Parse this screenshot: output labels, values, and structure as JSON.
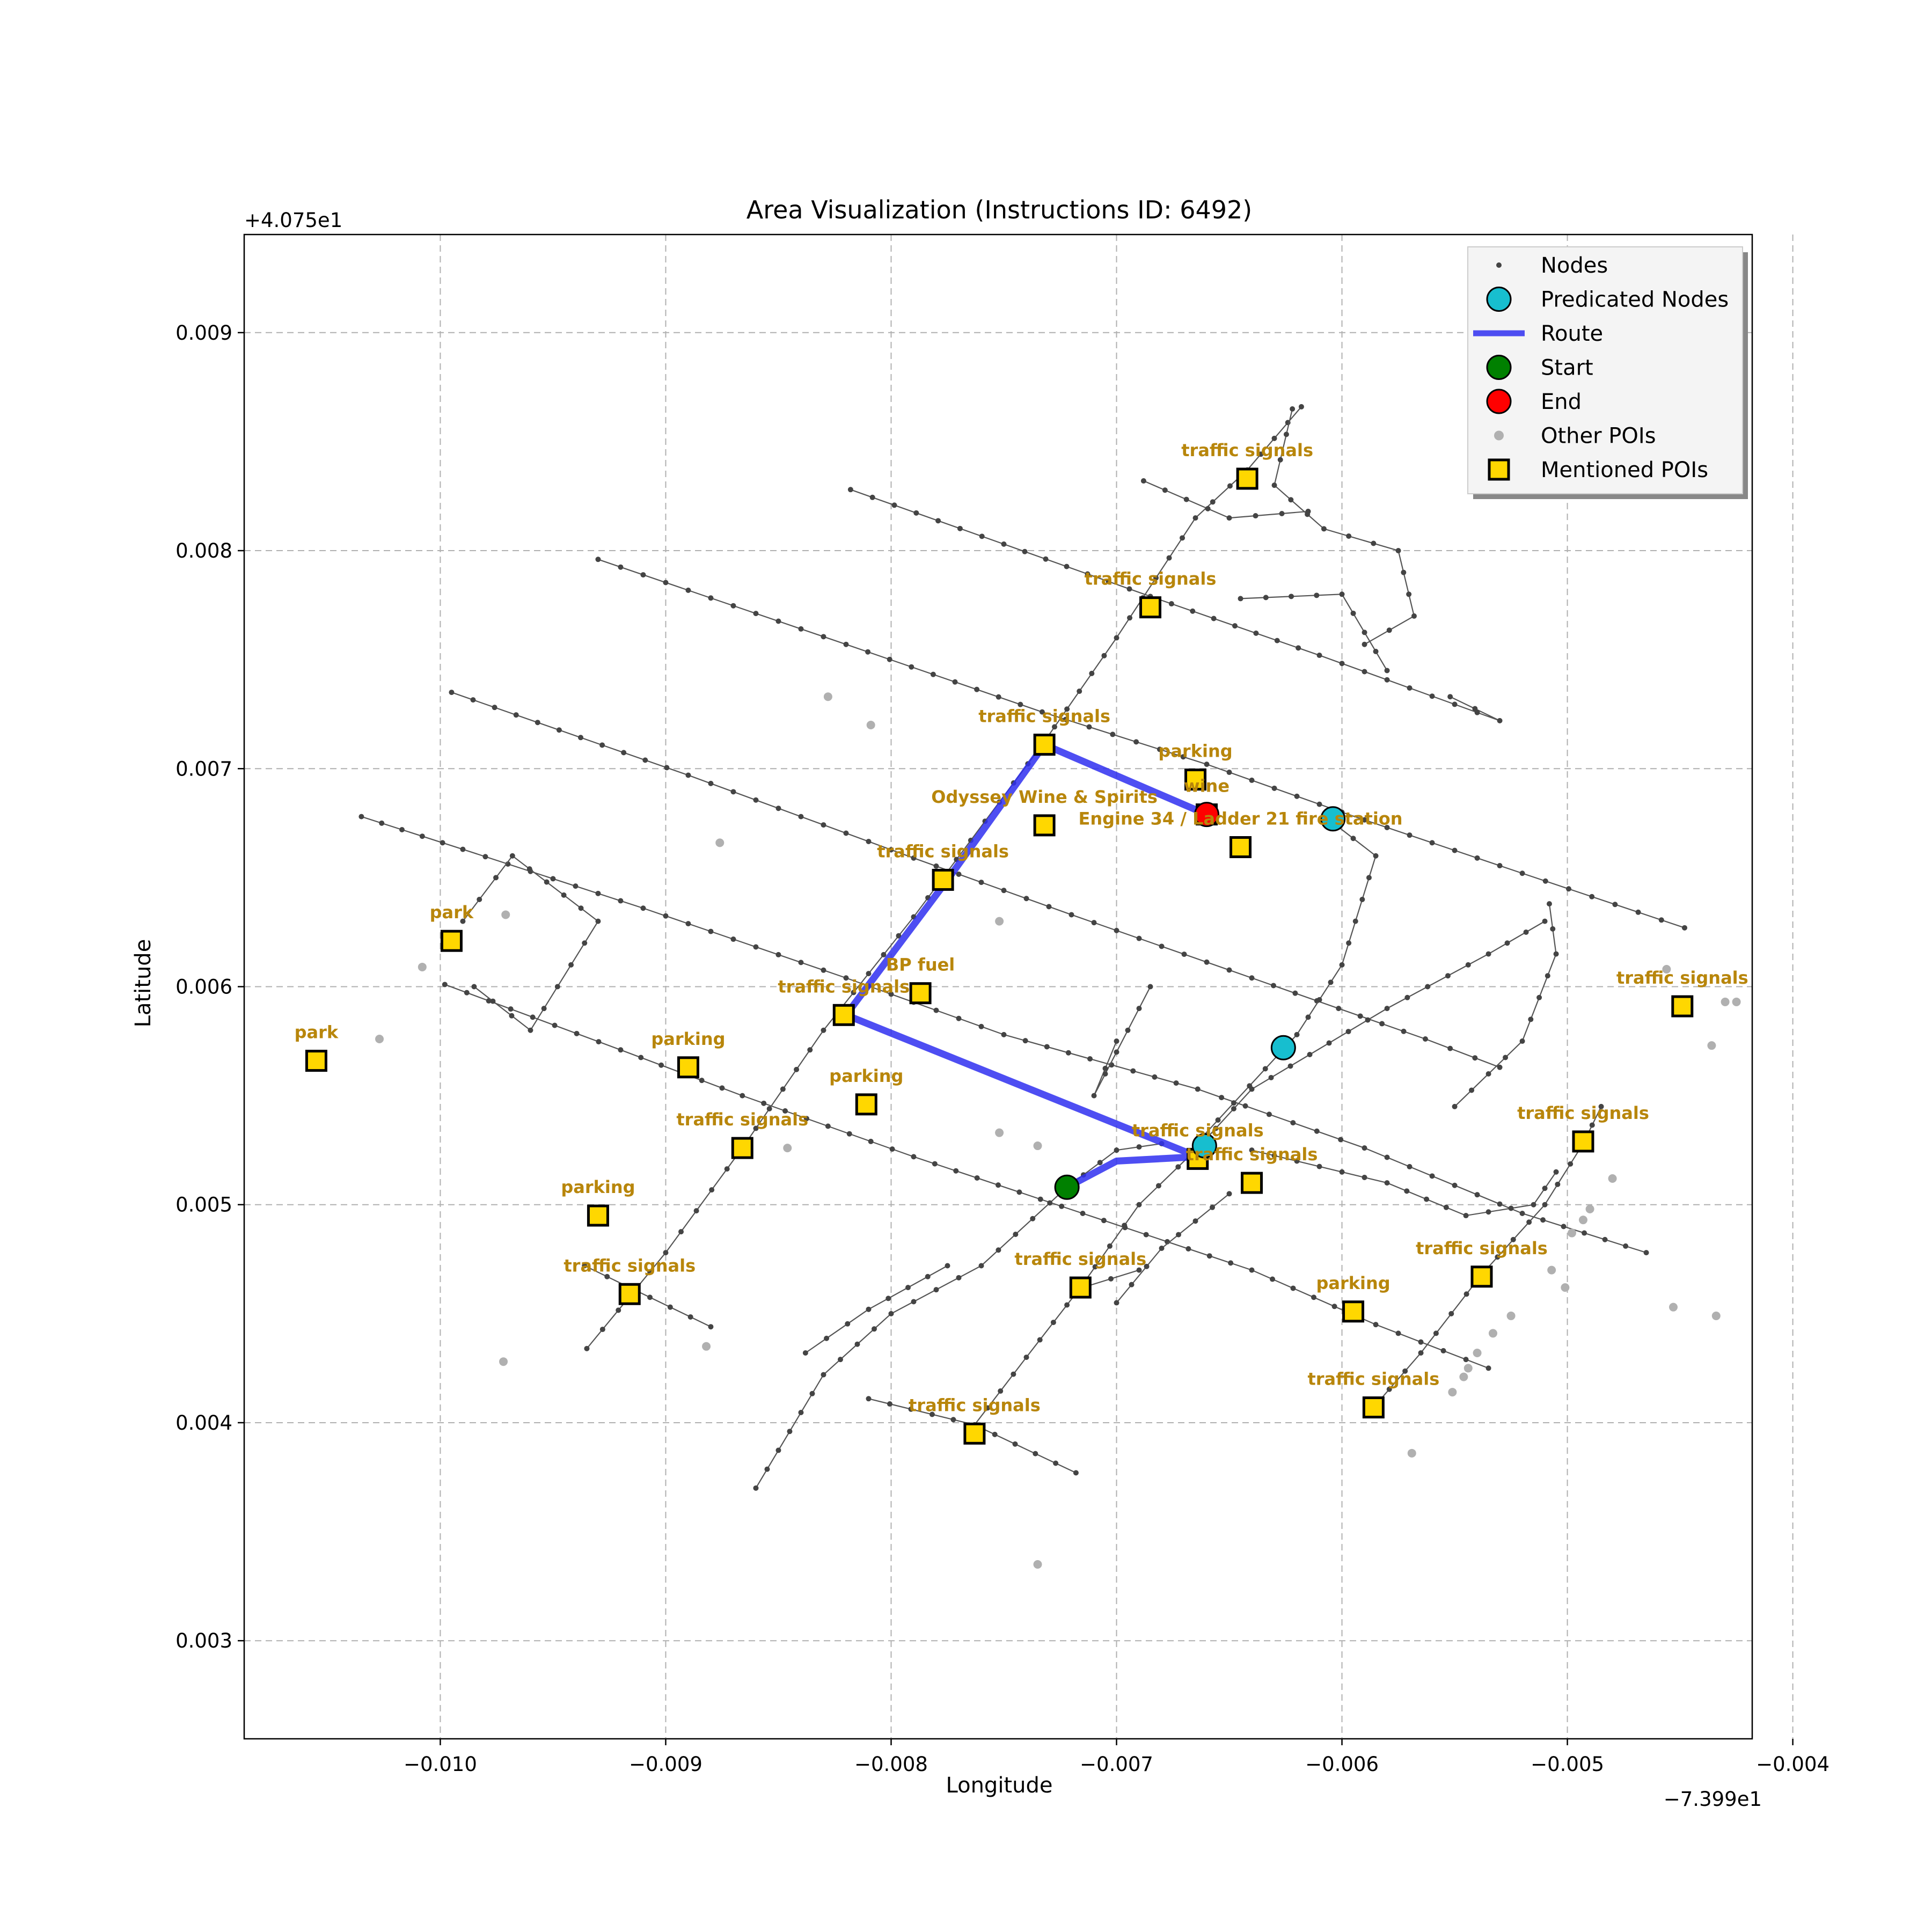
{
  "chart_data": {
    "type": "map",
    "title": "Area Visualization (Instructions ID: 6492)",
    "xlabel": "Longitude",
    "ylabel": "Latitude",
    "x_offset_label": "−7.399e1",
    "y_offset_label": "+4.075e1",
    "xlim": [
      -0.01087,
      -0.00418
    ],
    "ylim": [
      0.00255,
      0.00945
    ],
    "x_ticks": [
      {
        "value": -0.01,
        "label": "−0.010"
      },
      {
        "value": -0.009,
        "label": "−0.009"
      },
      {
        "value": -0.008,
        "label": "−0.008"
      },
      {
        "value": -0.007,
        "label": "−0.007"
      },
      {
        "value": -0.006,
        "label": "−0.006"
      },
      {
        "value": -0.005,
        "label": "−0.005"
      },
      {
        "value": -0.004,
        "label": "−0.004"
      }
    ],
    "y_ticks": [
      {
        "value": 0.003,
        "label": "0.003"
      },
      {
        "value": 0.004,
        "label": "0.004"
      },
      {
        "value": 0.005,
        "label": "0.005"
      },
      {
        "value": 0.006,
        "label": "0.006"
      },
      {
        "value": 0.007,
        "label": "0.007"
      },
      {
        "value": 0.008,
        "label": "0.008"
      },
      {
        "value": 0.009,
        "label": "0.009"
      }
    ],
    "grid": true,
    "legend": {
      "location": "upper right",
      "entries": [
        {
          "key": "nodes",
          "label": "Nodes"
        },
        {
          "key": "predicated",
          "label": "Predicated Nodes"
        },
        {
          "key": "route",
          "label": "Route"
        },
        {
          "key": "start",
          "label": "Start"
        },
        {
          "key": "end",
          "label": "End"
        },
        {
          "key": "other",
          "label": "Other POIs"
        },
        {
          "key": "mentioned",
          "label": "Mentioned POIs"
        }
      ]
    },
    "colors": {
      "nodes": "#444444",
      "predicated": "#17becf",
      "route": "#2f2ff0",
      "start": "#008000",
      "end": "#ff0000",
      "other": "#b0b0b0",
      "mentioned": "#ffd700",
      "poi_label": "#b8860b"
    },
    "roads": [
      [
        [
          -0.00995,
          0.00735
        ],
        [
          -0.0089,
          0.00697
        ],
        [
          -0.0079,
          0.00659
        ],
        [
          -0.0072,
          0.00633
        ],
        [
          -0.0064,
          0.00604
        ],
        [
          -0.00563,
          0.00576
        ],
        [
          -0.0053,
          0.00563
        ]
      ],
      [
        [
          -0.01035,
          0.00678
        ],
        [
          -0.0099,
          0.00663
        ],
        [
          -0.0091,
          0.00636
        ],
        [
          -0.0082,
          0.00604
        ],
        [
          -0.0075,
          0.00578
        ],
        [
          -0.00664,
          0.00553
        ],
        [
          -0.0059,
          0.00526
        ],
        [
          -0.0052,
          0.00496
        ],
        [
          -0.00465,
          0.00478
        ]
      ],
      [
        [
          -0.0093,
          0.00796
        ],
        [
          -0.0082,
          0.00757
        ],
        [
          -0.00733,
          0.00726
        ],
        [
          -0.0066,
          0.00702
        ],
        [
          -0.006,
          0.0068
        ],
        [
          -0.0052,
          0.00652
        ],
        [
          -0.00448,
          0.00627
        ]
      ],
      [
        [
          -0.00818,
          0.00828
        ],
        [
          -0.0075,
          0.00803
        ],
        [
          -0.00685,
          0.00779
        ],
        [
          -0.0061,
          0.00752
        ],
        [
          -0.0053,
          0.00722
        ],
        [
          -0.00552,
          0.00733
        ]
      ],
      [
        [
          -0.00998,
          0.00601
        ],
        [
          -0.0092,
          0.00571
        ],
        [
          -0.00866,
          0.0055
        ],
        [
          -0.0079,
          0.00522
        ],
        [
          -0.00715,
          0.00496
        ],
        [
          -0.0064,
          0.0047
        ],
        [
          -0.00585,
          0.00445
        ],
        [
          -0.00535,
          0.00425
        ]
      ],
      [
        [
          -0.0081,
          0.00411
        ],
        [
          -0.00763,
          0.00399
        ],
        [
          -0.00718,
          0.00377
        ]
      ],
      [
        [
          -0.00936,
          0.00472
        ],
        [
          -0.00916,
          0.00462
        ],
        [
          -0.0088,
          0.00444
        ]
      ],
      [
        [
          -0.00935,
          0.00434
        ],
        [
          -0.009,
          0.00478
        ],
        [
          -0.00866,
          0.00526
        ],
        [
          -0.0083,
          0.0058
        ],
        [
          -0.0079,
          0.00632
        ],
        [
          -0.00733,
          0.00711
        ],
        [
          -0.007,
          0.0076
        ],
        [
          -0.00665,
          0.00815
        ],
        [
          -0.00642,
          0.00837
        ],
        [
          -0.00618,
          0.00866
        ]
      ],
      [
        [
          -0.0086,
          0.0037
        ],
        [
          -0.0083,
          0.00422
        ],
        [
          -0.008,
          0.0045
        ],
        [
          -0.0076,
          0.00472
        ],
        [
          -0.00722,
          0.00508
        ],
        [
          -0.007,
          0.00525
        ],
        [
          -0.0068,
          0.00528
        ]
      ],
      [
        [
          -0.00838,
          0.00432
        ],
        [
          -0.0081,
          0.00452
        ],
        [
          -0.00775,
          0.00472
        ]
      ],
      [
        [
          -0.00763,
          0.00399
        ],
        [
          -0.0074,
          0.0043
        ],
        [
          -0.00716,
          0.00462
        ],
        [
          -0.0069,
          0.005
        ],
        [
          -0.00664,
          0.00526
        ],
        [
          -0.0064,
          0.00553
        ],
        [
          -0.0058,
          0.0059
        ],
        [
          -0.00535,
          0.00615
        ],
        [
          -0.0051,
          0.0063
        ]
      ],
      [
        [
          -0.00586,
          0.00407
        ],
        [
          -0.00565,
          0.00432
        ],
        [
          -0.00538,
          0.00468
        ],
        [
          -0.0051,
          0.005
        ],
        [
          -0.00493,
          0.00528
        ],
        [
          -0.00485,
          0.00545
        ]
      ],
      [
        [
          -0.00688,
          0.00832
        ],
        [
          -0.0065,
          0.00815
        ],
        [
          -0.00615,
          0.00818
        ]
      ],
      [
        [
          -0.00622,
          0.00865
        ],
        [
          -0.0063,
          0.0083
        ],
        [
          -0.00608,
          0.0081
        ],
        [
          -0.00575,
          0.008
        ],
        [
          -0.00568,
          0.0077
        ],
        [
          -0.0059,
          0.00757
        ]
      ],
      [
        [
          -0.00645,
          0.00778
        ],
        [
          -0.006,
          0.0078
        ],
        [
          -0.0058,
          0.00745
        ]
      ],
      [
        [
          -0.00605,
          0.00676
        ],
        [
          -0.00585,
          0.0066
        ],
        [
          -0.006,
          0.0061
        ],
        [
          -0.0062,
          0.00578
        ],
        [
          -0.00662,
          0.00531
        ]
      ],
      [
        [
          -0.007,
          0.00575
        ],
        [
          -0.0071,
          0.0055
        ],
        [
          -0.00685,
          0.006
        ]
      ],
      [
        [
          -0.0055,
          0.00545
        ],
        [
          -0.0052,
          0.00575
        ],
        [
          -0.00505,
          0.00615
        ],
        [
          -0.00508,
          0.00638
        ]
      ],
      [
        [
          -0.0064,
          0.00525
        ],
        [
          -0.0058,
          0.0051
        ],
        [
          -0.00545,
          0.00495
        ],
        [
          -0.00515,
          0.005
        ],
        [
          -0.00505,
          0.00515
        ]
      ],
      [
        [
          -0.007,
          0.00455
        ],
        [
          -0.0068,
          0.0048
        ],
        [
          -0.0065,
          0.00505
        ]
      ],
      [
        [
          -0.0069,
          0.0047
        ],
        [
          -0.00715,
          0.00462
        ]
      ],
      [
        [
          -0.0099,
          0.0063
        ],
        [
          -0.00968,
          0.0066
        ],
        [
          -0.0093,
          0.0063
        ],
        [
          -0.0096,
          0.0058
        ],
        [
          -0.00985,
          0.006
        ]
      ]
    ],
    "route": [
      [
        -0.00722,
        0.00508
      ],
      [
        -0.007,
        0.0052
      ],
      [
        -0.00664,
        0.00522
      ],
      [
        -0.0082,
        0.00587
      ],
      [
        -0.00775,
        0.00649
      ],
      [
        -0.00732,
        0.00711
      ],
      [
        -0.0066,
        0.00679
      ]
    ],
    "predicated_nodes": [
      [
        -0.00661,
        0.00527
      ],
      [
        -0.00626,
        0.00572
      ],
      [
        -0.00604,
        0.00677
      ]
    ],
    "start": [
      -0.00722,
      0.00508
    ],
    "end": [
      -0.0066,
      0.00679
    ],
    "other_pois": [
      [
        -0.00828,
        0.00733
      ],
      [
        -0.00809,
        0.0072
      ],
      [
        -0.00876,
        0.00666
      ],
      [
        -0.00971,
        0.00633
      ],
      [
        -0.01008,
        0.00609
      ],
      [
        -0.01027,
        0.00576
      ],
      [
        -0.00752,
        0.0063
      ],
      [
        -0.00752,
        0.00533
      ],
      [
        -0.00735,
        0.00527
      ],
      [
        -0.00846,
        0.00526
      ],
      [
        -0.00882,
        0.00435
      ],
      [
        -0.00972,
        0.00428
      ],
      [
        -0.00735,
        0.00335
      ],
      [
        -0.00569,
        0.00386
      ],
      [
        -0.00507,
        0.0047
      ],
      [
        -0.00501,
        0.00462
      ],
      [
        -0.00498,
        0.00487
      ],
      [
        -0.00493,
        0.00493
      ],
      [
        -0.0049,
        0.00498
      ],
      [
        -0.0048,
        0.00512
      ],
      [
        -0.00525,
        0.00449
      ],
      [
        -0.00533,
        0.00441
      ],
      [
        -0.0054,
        0.00432
      ],
      [
        -0.00544,
        0.00425
      ],
      [
        -0.00546,
        0.00421
      ],
      [
        -0.00551,
        0.00414
      ],
      [
        -0.00453,
        0.00453
      ],
      [
        -0.00434,
        0.00449
      ],
      [
        -0.00456,
        0.00608
      ],
      [
        -0.0043,
        0.00593
      ],
      [
        -0.00425,
        0.00593
      ],
      [
        -0.00436,
        0.00573
      ]
    ],
    "mentioned_pois": [
      {
        "name": "traffic signals",
        "lon": -0.00642,
        "lat": 0.00833
      },
      {
        "name": "traffic signals",
        "lon": -0.00685,
        "lat": 0.00774
      },
      {
        "name": "traffic signals",
        "lon": -0.00732,
        "lat": 0.00711
      },
      {
        "name": "parking",
        "lon": -0.00665,
        "lat": 0.00695
      },
      {
        "name": "Odyssey Wine & Spirits",
        "lon": -0.00732,
        "lat": 0.00674
      },
      {
        "name": "wine",
        "lon": -0.0066,
        "lat": 0.00679
      },
      {
        "name": "Engine 34 / Ladder 21 fire station",
        "lon": -0.00645,
        "lat": 0.00664
      },
      {
        "name": "traffic signals",
        "lon": -0.00777,
        "lat": 0.00649
      },
      {
        "name": "park",
        "lon": -0.00995,
        "lat": 0.00621
      },
      {
        "name": "BP fuel",
        "lon": -0.00787,
        "lat": 0.00597
      },
      {
        "name": "traffic signals",
        "lon": -0.00821,
        "lat": 0.00587
      },
      {
        "name": "traffic signals",
        "lon": -0.00449,
        "lat": 0.00591
      },
      {
        "name": "park",
        "lon": -0.01055,
        "lat": 0.00566
      },
      {
        "name": "parking",
        "lon": -0.0089,
        "lat": 0.00563
      },
      {
        "name": "parking",
        "lon": -0.00811,
        "lat": 0.00546
      },
      {
        "name": "traffic signals",
        "lon": -0.00866,
        "lat": 0.00526
      },
      {
        "name": "traffic signals",
        "lon": -0.00664,
        "lat": 0.00521
      },
      {
        "name": "traffic signals",
        "lon": -0.0064,
        "lat": 0.0051
      },
      {
        "name": "traffic signals",
        "lon": -0.00493,
        "lat": 0.00529
      },
      {
        "name": "parking",
        "lon": -0.0093,
        "lat": 0.00495
      },
      {
        "name": "traffic signals",
        "lon": -0.00538,
        "lat": 0.00467
      },
      {
        "name": "traffic signals",
        "lon": -0.00716,
        "lat": 0.00462
      },
      {
        "name": "traffic signals",
        "lon": -0.00916,
        "lat": 0.00459
      },
      {
        "name": "parking",
        "lon": -0.00595,
        "lat": 0.00451
      },
      {
        "name": "traffic signals",
        "lon": -0.00586,
        "lat": 0.00407
      },
      {
        "name": "traffic signals",
        "lon": -0.00763,
        "lat": 0.00395
      }
    ]
  }
}
